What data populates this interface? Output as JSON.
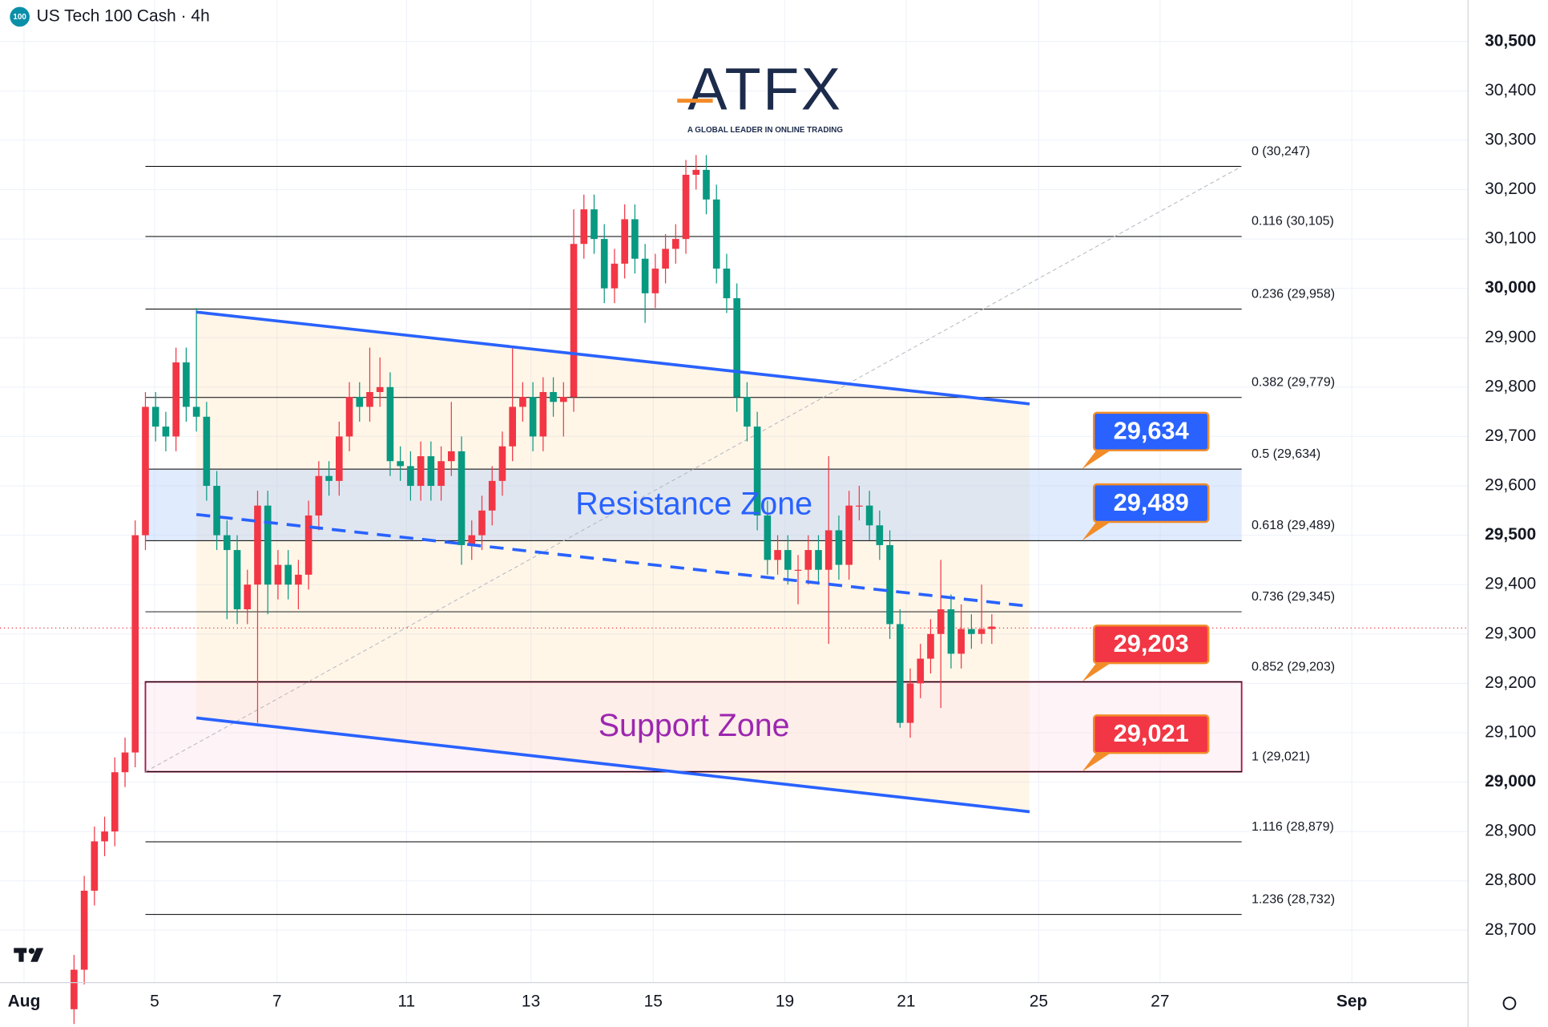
{
  "chart_data": {
    "type": "candlestick",
    "title": "US Tech 100 Cash · 4h",
    "symbol_icon": "100",
    "logo": {
      "text": "ATFX",
      "tagline": "A GLOBAL LEADER IN ONLINE TRADING"
    },
    "up_color": "#f23645",
    "down_color": "#089981",
    "candles": {
      "open": [
        28540,
        28620,
        28780,
        28880,
        28900,
        29020,
        29060,
        29500,
        29760,
        29720,
        29700,
        29850,
        29760,
        29740,
        29600,
        29500,
        29470,
        29350,
        29400,
        29560,
        29400,
        29440,
        29400,
        29420,
        29540,
        29620,
        29610,
        29700,
        29780,
        29760,
        29790,
        29800,
        29650,
        29640,
        29600,
        29660,
        29600,
        29650,
        29670,
        29480,
        29500,
        29550,
        29610,
        29680,
        29760,
        29780,
        29700,
        29790,
        29770,
        29780,
        30090,
        30160,
        30100,
        30000,
        30050,
        30140,
        30060,
        29990,
        30040,
        30080,
        30100,
        30230,
        30240,
        30180,
        30040,
        29980,
        29780,
        29720,
        29540,
        29450,
        29470,
        29430,
        29430,
        29470,
        29430,
        29510,
        29440,
        29560,
        29560,
        29520,
        29480,
        29320,
        29120,
        29200,
        29250,
        29300,
        29350,
        29260,
        29310,
        29300,
        29310
      ],
      "high": [
        28650,
        28810,
        28910,
        28930,
        29050,
        29090,
        29530,
        29790,
        29790,
        29750,
        29880,
        29880,
        29960,
        29770,
        29630,
        29530,
        29500,
        29430,
        29590,
        29590,
        29470,
        29470,
        29450,
        29570,
        29650,
        29650,
        29730,
        29810,
        29810,
        29880,
        29860,
        29830,
        29680,
        29670,
        29690,
        29690,
        29680,
        29770,
        29700,
        29530,
        29580,
        29640,
        29710,
        29880,
        29810,
        29810,
        29820,
        29820,
        29810,
        30160,
        30190,
        30190,
        30130,
        30080,
        30170,
        30170,
        30090,
        30070,
        30110,
        30130,
        30260,
        30270,
        30270,
        30210,
        30070,
        30010,
        29810,
        29750,
        29570,
        29500,
        29500,
        29460,
        29500,
        29500,
        29660,
        29540,
        29590,
        29600,
        29590,
        29550,
        29510,
        29350,
        29230,
        29280,
        29330,
        29450,
        29380,
        29360,
        29340,
        29400,
        29340
      ],
      "low": [
        28510,
        28590,
        28750,
        28850,
        28870,
        28990,
        29030,
        29470,
        29690,
        29670,
        29670,
        29730,
        29710,
        29570,
        29470,
        29330,
        29320,
        29320,
        29120,
        29340,
        29370,
        29370,
        29350,
        29390,
        29510,
        29580,
        29580,
        29670,
        29730,
        29730,
        29760,
        29620,
        29610,
        29570,
        29570,
        29570,
        29570,
        29620,
        29440,
        29450,
        29470,
        29520,
        29580,
        29650,
        29730,
        29670,
        29670,
        29740,
        29700,
        29750,
        30060,
        30070,
        29970,
        29970,
        30020,
        30030,
        29930,
        29960,
        30010,
        30050,
        30070,
        30200,
        30150,
        30010,
        29950,
        29750,
        29690,
        29510,
        29420,
        29420,
        29400,
        29360,
        29400,
        29400,
        29280,
        29410,
        29410,
        29530,
        29490,
        29450,
        29290,
        29110,
        29090,
        29170,
        29220,
        29150,
        29230,
        29230,
        29270,
        29280,
        29280
      ],
      "close": [
        28620,
        28780,
        28880,
        28900,
        29020,
        29060,
        29500,
        29760,
        29720,
        29700,
        29850,
        29760,
        29740,
        29600,
        29500,
        29470,
        29350,
        29400,
        29560,
        29400,
        29440,
        29400,
        29420,
        29540,
        29620,
        29610,
        29700,
        29780,
        29760,
        29790,
        29800,
        29650,
        29640,
        29600,
        29660,
        29600,
        29650,
        29670,
        29480,
        29500,
        29550,
        29610,
        29680,
        29760,
        29780,
        29700,
        29790,
        29770,
        29780,
        30090,
        30160,
        30100,
        30000,
        30050,
        30140,
        30060,
        29990,
        30040,
        30080,
        30100,
        30230,
        30240,
        30180,
        30040,
        29980,
        29780,
        29720,
        29540,
        29450,
        29470,
        29430,
        29430,
        29470,
        29430,
        29510,
        29440,
        29560,
        29560,
        29520,
        29480,
        29320,
        29120,
        29200,
        29250,
        29300,
        29350,
        29260,
        29310,
        29300,
        29310,
        29315
      ]
    },
    "xlim": [
      -7.26,
      136.7
    ],
    "xticks": [
      {
        "value": -4.9,
        "label": "Aug"
      },
      {
        "value": 7.9,
        "label": "5"
      },
      {
        "value": 19.9,
        "label": "7"
      },
      {
        "value": 32.6,
        "label": "11"
      },
      {
        "value": 44.8,
        "label": "13"
      },
      {
        "value": 56.8,
        "label": "15"
      },
      {
        "value": 69.7,
        "label": "19"
      },
      {
        "value": 81.6,
        "label": "21"
      },
      {
        "value": 94.6,
        "label": "25"
      },
      {
        "value": 106.5,
        "label": "27"
      },
      {
        "value": 125.3,
        "label": "Sep"
      }
    ],
    "ylim": [
      28594,
      30584
    ],
    "yticks": [
      {
        "value": 28700,
        "label": "28,700"
      },
      {
        "value": 28800,
        "label": "28,800"
      },
      {
        "value": 28900,
        "label": "28,900"
      },
      {
        "value": 29000,
        "label": "29,000"
      },
      {
        "value": 29100,
        "label": "29,100"
      },
      {
        "value": 29200,
        "label": "29,200"
      },
      {
        "value": 29300,
        "label": "29,300"
      },
      {
        "value": 29400,
        "label": "29,400"
      },
      {
        "value": 29500,
        "label": "29,500"
      },
      {
        "value": 29600,
        "label": "29,600"
      },
      {
        "value": 29700,
        "label": "29,700"
      },
      {
        "value": 29800,
        "label": "29,800"
      },
      {
        "value": 29900,
        "label": "29,900"
      },
      {
        "value": 30000,
        "label": "30,000"
      },
      {
        "value": 30100,
        "label": "30,100"
      },
      {
        "value": 30200,
        "label": "30,200"
      },
      {
        "value": 30300,
        "label": "30,300"
      },
      {
        "value": 30400,
        "label": "30,400"
      },
      {
        "value": 30500,
        "label": "30,500"
      }
    ],
    "bold_yticks": [
      29000,
      29500,
      30000,
      30500
    ],
    "grid": true,
    "last_price": 29312,
    "fib": {
      "x": [
        7,
        114.5
      ],
      "trend": [
        [
          7,
          29021
        ],
        [
          114.5,
          30247
        ]
      ],
      "levels": [
        {
          "value": 30247,
          "label": "0 (30,247)"
        },
        {
          "value": 30105,
          "label": "0.116 (30,105)"
        },
        {
          "value": 29958,
          "label": "0.236 (29,958)"
        },
        {
          "value": 29779,
          "label": "0.382 (29,779)"
        },
        {
          "value": 29634,
          "label": "0.5 (29,634)"
        },
        {
          "value": 29489,
          "label": "0.618 (29,489)"
        },
        {
          "value": 29345,
          "label": "0.736 (29,345)"
        },
        {
          "value": 29203,
          "label": "0.852 (29,203)"
        },
        {
          "value": 29021,
          "label": "1 (29,021)"
        },
        {
          "value": 28879,
          "label": "1.116 (28,879)"
        },
        {
          "value": 28732,
          "label": "1.236 (28,732)"
        }
      ]
    },
    "channel": {
      "color": "#2962ff",
      "upper": [
        [
          12,
          29952
        ],
        [
          93.7,
          29766
        ]
      ],
      "middle": [
        [
          12,
          29542
        ],
        [
          93.7,
          29356
        ]
      ],
      "lower": [
        [
          12,
          29130
        ],
        [
          93.7,
          28940
        ]
      ]
    },
    "zones": [
      {
        "name": "Resistance Zone",
        "from": 29489,
        "to": 29634,
        "color": "#2962ff"
      },
      {
        "name": "Support Zone",
        "from": 29021,
        "to": 29203,
        "color": "#9c27b0"
      }
    ],
    "callouts": [
      {
        "value": 29634,
        "label": "29,634",
        "color": "#2962ff"
      },
      {
        "value": 29489,
        "label": "29,489",
        "color": "#2962ff"
      },
      {
        "value": 29203,
        "label": "29,203",
        "color": "#f23645"
      },
      {
        "value": 29021,
        "label": "29,021",
        "color": "#f23645"
      }
    ]
  }
}
